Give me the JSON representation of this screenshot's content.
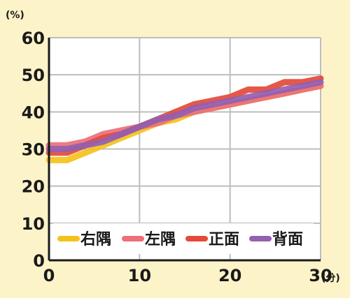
{
  "chart_data": {
    "type": "line",
    "title": "",
    "xlabel": "",
    "ylabel": "",
    "x_unit": "(分)",
    "y_unit": "(%)",
    "xlim": [
      0,
      30
    ],
    "ylim": [
      0,
      60
    ],
    "xticks": [
      0,
      10,
      20,
      30
    ],
    "yticks": [
      0,
      10,
      20,
      30,
      40,
      50,
      60
    ],
    "grid": true,
    "legend_position": "bottom",
    "plot_background": "#ffffff",
    "grid_color": "#bdbdbd",
    "series": [
      {
        "name": "右隅",
        "color": "#f5c21b",
        "x": [
          0,
          2,
          4,
          6,
          8,
          10,
          12,
          14,
          16,
          18,
          20,
          22,
          24,
          26,
          28,
          30
        ],
        "y": [
          27,
          27,
          29,
          31,
          33,
          35,
          37,
          38,
          40,
          41,
          42,
          43,
          44,
          45,
          46,
          47
        ]
      },
      {
        "name": "左隅",
        "color": "#ec6f7a",
        "x": [
          0,
          2,
          4,
          6,
          8,
          10,
          12,
          14,
          16,
          18,
          20,
          22,
          24,
          26,
          28,
          30
        ],
        "y": [
          31,
          31,
          32,
          34,
          35,
          36,
          37,
          39,
          40,
          41,
          42,
          43,
          44,
          45,
          46,
          47
        ]
      },
      {
        "name": "正面",
        "color": "#e34a3a",
        "x": [
          0,
          2,
          4,
          6,
          8,
          10,
          12,
          14,
          16,
          18,
          20,
          22,
          24,
          26,
          28,
          30
        ],
        "y": [
          29,
          29,
          31,
          33,
          34,
          36,
          38,
          40,
          42,
          43,
          44,
          46,
          46,
          48,
          48,
          49
        ]
      },
      {
        "name": "背面",
        "color": "#9460b0",
        "x": [
          0,
          2,
          4,
          6,
          8,
          10,
          12,
          14,
          16,
          18,
          20,
          22,
          24,
          26,
          28,
          30
        ],
        "y": [
          30,
          30,
          31,
          32,
          34,
          36,
          38,
          39,
          41,
          42,
          43,
          44,
          45,
          46,
          47,
          48
        ]
      }
    ]
  }
}
